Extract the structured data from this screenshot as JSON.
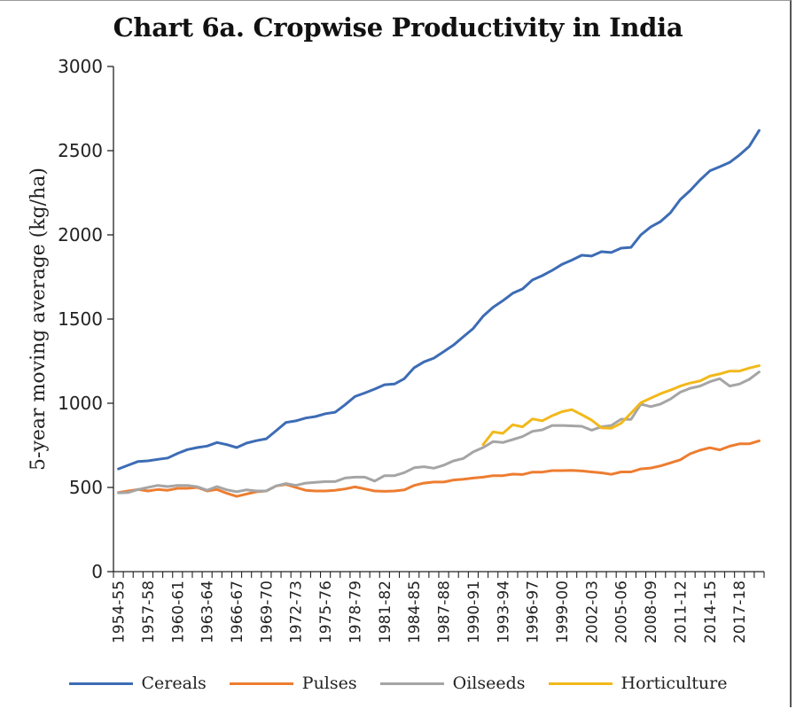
{
  "chart_data": {
    "type": "line",
    "title": "Chart 6a. Cropwise Productivity in India",
    "xlabel": "",
    "ylabel": "5-year moving average (kg/ha)",
    "ylim": [
      0,
      3000
    ],
    "yticks": [
      0,
      500,
      1000,
      1500,
      2000,
      2500,
      3000
    ],
    "grid": false,
    "legend_position": "bottom",
    "x": [
      "1954-55",
      "1955-56",
      "1956-57",
      "1957-58",
      "1958-59",
      "1959-60",
      "1960-61",
      "1961-62",
      "1962-63",
      "1963-64",
      "1964-65",
      "1965-66",
      "1966-67",
      "1967-68",
      "1968-69",
      "1969-70",
      "1970-71",
      "1971-72",
      "1972-73",
      "1973-74",
      "1974-75",
      "1975-76",
      "1976-77",
      "1977-78",
      "1978-79",
      "1979-80",
      "1980-81",
      "1981-82",
      "1982-83",
      "1983-84",
      "1984-85",
      "1985-86",
      "1986-87",
      "1987-88",
      "1988-89",
      "1989-90",
      "1990-91",
      "1991-92",
      "1992-93",
      "1993-94",
      "1994-95",
      "1995-96",
      "1996-97",
      "1997-98",
      "1998-99",
      "1999-00",
      "2000-01",
      "2001-02",
      "2002-03",
      "2003-04",
      "2004-05",
      "2005-06",
      "2006-07",
      "2007-08",
      "2008-09",
      "2009-10",
      "2010-11",
      "2011-12",
      "2012-13",
      "2013-14",
      "2014-15",
      "2015-16",
      "2016-17",
      "2017-18",
      "2018-19",
      "2019-20"
    ],
    "xtick_labels": [
      "1954-55",
      "1957-58",
      "1960-61",
      "1963-64",
      "1966-67",
      "1969-70",
      "1972-73",
      "1975-76",
      "1978-79",
      "1981-82",
      "1984-85",
      "1987-88",
      "1990-91",
      "1993-94",
      "1996-97",
      "1999-00",
      "2002-03",
      "2005-06",
      "2008-09",
      "2011-12",
      "2014-15",
      "2017-18"
    ],
    "series": [
      {
        "name": "Cereals",
        "color": "#3d6cb5",
        "values": [
          610,
          632,
          654,
          658,
          667,
          675,
          702,
          725,
          737,
          746,
          767,
          754,
          737,
          763,
          778,
          789,
          837,
          886,
          895,
          912,
          921,
          938,
          947,
          991,
          1040,
          1061,
          1084,
          1110,
          1114,
          1146,
          1211,
          1246,
          1268,
          1307,
          1346,
          1395,
          1444,
          1517,
          1570,
          1609,
          1653,
          1679,
          1732,
          1758,
          1789,
          1825,
          1850,
          1879,
          1874,
          1900,
          1895,
          1921,
          1926,
          2000,
          2047,
          2079,
          2131,
          2210,
          2263,
          2326,
          2380,
          2405,
          2430,
          2474,
          2526,
          2620
        ]
      },
      {
        "name": "Pulses",
        "color": "#ed7d31",
        "values": [
          470,
          479,
          488,
          479,
          488,
          483,
          495,
          495,
          500,
          479,
          488,
          465,
          447,
          461,
          474,
          479,
          509,
          518,
          500,
          483,
          479,
          479,
          483,
          491,
          503,
          491,
          479,
          477,
          479,
          486,
          512,
          526,
          532,
          532,
          544,
          549,
          556,
          561,
          570,
          570,
          579,
          577,
          591,
          591,
          600,
          600,
          601,
          598,
          592,
          587,
          578,
          592,
          592,
          610,
          615,
          628,
          646,
          664,
          700,
          721,
          736,
          723,
          745,
          759,
          759,
          777
        ]
      },
      {
        "name": "Oilseeds",
        "color": "#a5a5a5",
        "values": [
          468,
          470,
          488,
          500,
          512,
          505,
          512,
          512,
          504,
          483,
          505,
          486,
          474,
          486,
          479,
          479,
          509,
          523,
          512,
          526,
          530,
          535,
          535,
          556,
          561,
          561,
          538,
          570,
          570,
          588,
          617,
          623,
          614,
          632,
          658,
          672,
          711,
          737,
          772,
          767,
          784,
          802,
          833,
          842,
          868,
          868,
          866,
          863,
          840,
          860,
          868,
          905,
          904,
          995,
          980,
          995,
          1025,
          1066,
          1089,
          1102,
          1128,
          1146,
          1102,
          1114,
          1142,
          1186
        ]
      },
      {
        "name": "Horticulture",
        "color": "#f2b91b",
        "values": [
          null,
          null,
          null,
          null,
          null,
          null,
          null,
          null,
          null,
          null,
          null,
          null,
          null,
          null,
          null,
          null,
          null,
          null,
          null,
          null,
          null,
          null,
          null,
          null,
          null,
          null,
          null,
          null,
          null,
          null,
          null,
          null,
          null,
          null,
          null,
          null,
          null,
          754,
          830,
          821,
          872,
          860,
          907,
          896,
          926,
          950,
          962,
          932,
          900,
          854,
          851,
          881,
          941,
          1003,
          1030,
          1057,
          1078,
          1102,
          1120,
          1132,
          1161,
          1174,
          1191,
          1191,
          1209,
          1223
        ]
      }
    ]
  }
}
